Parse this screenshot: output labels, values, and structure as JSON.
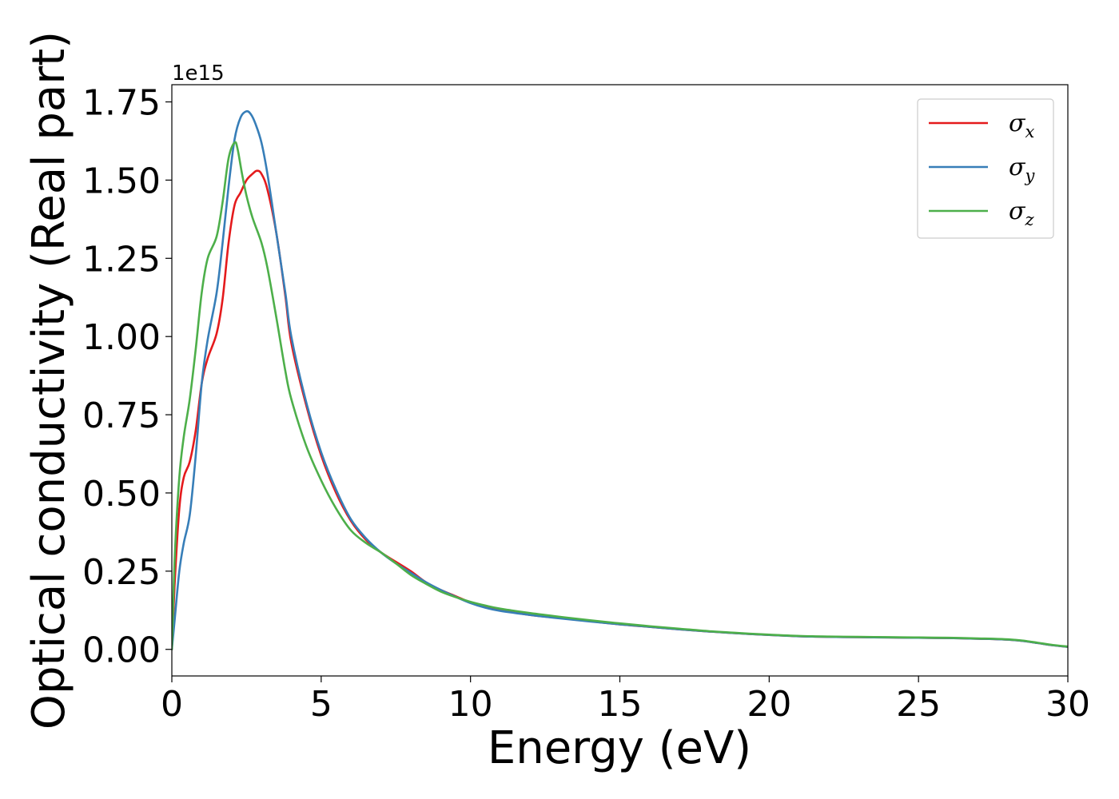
{
  "chart_data": {
    "type": "line",
    "xlabel": "Energy (eV)",
    "ylabel": "Optical conductivity (Real part)",
    "y_offset_text": "1e15",
    "y_multiplier": 1000000000000000.0,
    "xlim": [
      0,
      30
    ],
    "ylim": [
      -0.085,
      1.805
    ],
    "xticks": [
      0,
      5,
      10,
      15,
      20,
      25,
      30
    ],
    "xtick_labels": [
      "0",
      "5",
      "10",
      "15",
      "20",
      "25",
      "30"
    ],
    "yticks": [
      0.0,
      0.25,
      0.5,
      0.75,
      1.0,
      1.25,
      1.5,
      1.75
    ],
    "ytick_labels": [
      "0.00",
      "0.25",
      "0.50",
      "0.75",
      "1.00",
      "1.25",
      "1.50",
      "1.75"
    ],
    "grid": false,
    "legend_position": "top-right",
    "series": [
      {
        "name": "σx",
        "symbol": "σ",
        "subscript": "x",
        "color": "#e41a1c",
        "x": [
          0,
          0.1,
          0.25,
          0.4,
          0.6,
          0.8,
          1.0,
          1.2,
          1.5,
          1.7,
          1.9,
          2.1,
          2.3,
          2.5,
          2.7,
          2.85,
          3.0,
          3.2,
          3.5,
          3.8,
          4.0,
          4.5,
          5.0,
          5.5,
          6.0,
          6.5,
          7.0,
          7.5,
          8.0,
          8.5,
          9.0,
          9.5,
          10.0,
          10.5,
          11.0,
          12.0,
          13.0,
          14.0,
          15.0,
          16.0,
          17.0,
          18.0,
          19.0,
          20.0,
          21.0,
          22.0,
          23.0,
          24.0,
          25.0,
          26.0,
          27.0,
          27.5,
          28.0,
          28.5,
          29.0,
          29.5,
          30.0
        ],
        "values": [
          0.0,
          0.22,
          0.45,
          0.55,
          0.6,
          0.7,
          0.85,
          0.93,
          1.01,
          1.12,
          1.3,
          1.42,
          1.46,
          1.5,
          1.52,
          1.53,
          1.52,
          1.47,
          1.33,
          1.13,
          0.98,
          0.78,
          0.62,
          0.5,
          0.41,
          0.35,
          0.31,
          0.28,
          0.25,
          0.215,
          0.19,
          0.17,
          0.15,
          0.135,
          0.125,
          0.11,
          0.1,
          0.09,
          0.08,
          0.072,
          0.064,
          0.057,
          0.051,
          0.046,
          0.042,
          0.04,
          0.039,
          0.038,
          0.037,
          0.036,
          0.034,
          0.033,
          0.031,
          0.027,
          0.02,
          0.013,
          0.008
        ]
      },
      {
        "name": "σy",
        "symbol": "σ",
        "subscript": "y",
        "color": "#377eb8",
        "x": [
          0,
          0.1,
          0.25,
          0.4,
          0.6,
          0.8,
          1.0,
          1.2,
          1.5,
          1.7,
          1.9,
          2.1,
          2.3,
          2.5,
          2.65,
          2.8,
          3.0,
          3.2,
          3.5,
          3.8,
          4.0,
          4.5,
          5.0,
          5.5,
          6.0,
          6.5,
          7.0,
          7.5,
          8.0,
          8.5,
          9.0,
          9.5,
          10.0,
          10.5,
          11.0,
          12.0,
          13.0,
          14.0,
          15.0,
          16.0,
          17.0,
          18.0,
          19.0,
          20.0,
          21.0,
          22.0,
          23.0,
          24.0,
          25.0,
          26.0,
          27.0,
          27.5,
          28.0,
          28.5,
          29.0,
          29.5,
          30.0
        ],
        "values": [
          0.0,
          0.1,
          0.25,
          0.34,
          0.43,
          0.62,
          0.85,
          0.99,
          1.14,
          1.3,
          1.48,
          1.63,
          1.7,
          1.72,
          1.71,
          1.68,
          1.62,
          1.52,
          1.33,
          1.14,
          1.0,
          0.79,
          0.63,
          0.51,
          0.415,
          0.355,
          0.31,
          0.275,
          0.245,
          0.215,
          0.19,
          0.168,
          0.148,
          0.133,
          0.123,
          0.11,
          0.099,
          0.089,
          0.08,
          0.072,
          0.064,
          0.057,
          0.051,
          0.046,
          0.042,
          0.04,
          0.039,
          0.038,
          0.037,
          0.036,
          0.034,
          0.033,
          0.031,
          0.027,
          0.02,
          0.013,
          0.008
        ]
      },
      {
        "name": "σz",
        "symbol": "σ",
        "subscript": "z",
        "color": "#4daf4a",
        "x": [
          0,
          0.1,
          0.25,
          0.4,
          0.6,
          0.8,
          1.0,
          1.2,
          1.5,
          1.7,
          1.9,
          2.1,
          2.2,
          2.35,
          2.5,
          2.7,
          3.0,
          3.2,
          3.5,
          3.8,
          4.0,
          4.5,
          5.0,
          5.5,
          6.0,
          6.5,
          7.0,
          7.5,
          8.0,
          8.5,
          9.0,
          9.5,
          10.0,
          10.5,
          11.0,
          12.0,
          13.0,
          14.0,
          15.0,
          16.0,
          17.0,
          18.0,
          19.0,
          20.0,
          21.0,
          22.0,
          23.0,
          24.0,
          25.0,
          26.0,
          27.0,
          27.5,
          28.0,
          28.5,
          29.0,
          29.5,
          30.0
        ],
        "values": [
          0.0,
          0.3,
          0.55,
          0.68,
          0.8,
          0.96,
          1.14,
          1.25,
          1.32,
          1.43,
          1.57,
          1.62,
          1.6,
          1.52,
          1.45,
          1.38,
          1.3,
          1.22,
          1.06,
          0.89,
          0.8,
          0.65,
          0.54,
          0.45,
          0.38,
          0.34,
          0.31,
          0.275,
          0.238,
          0.21,
          0.185,
          0.167,
          0.152,
          0.14,
          0.13,
          0.116,
          0.104,
          0.093,
          0.083,
          0.074,
          0.066,
          0.058,
          0.052,
          0.047,
          0.043,
          0.041,
          0.04,
          0.039,
          0.038,
          0.037,
          0.035,
          0.034,
          0.032,
          0.028,
          0.021,
          0.014,
          0.009
        ]
      }
    ]
  }
}
